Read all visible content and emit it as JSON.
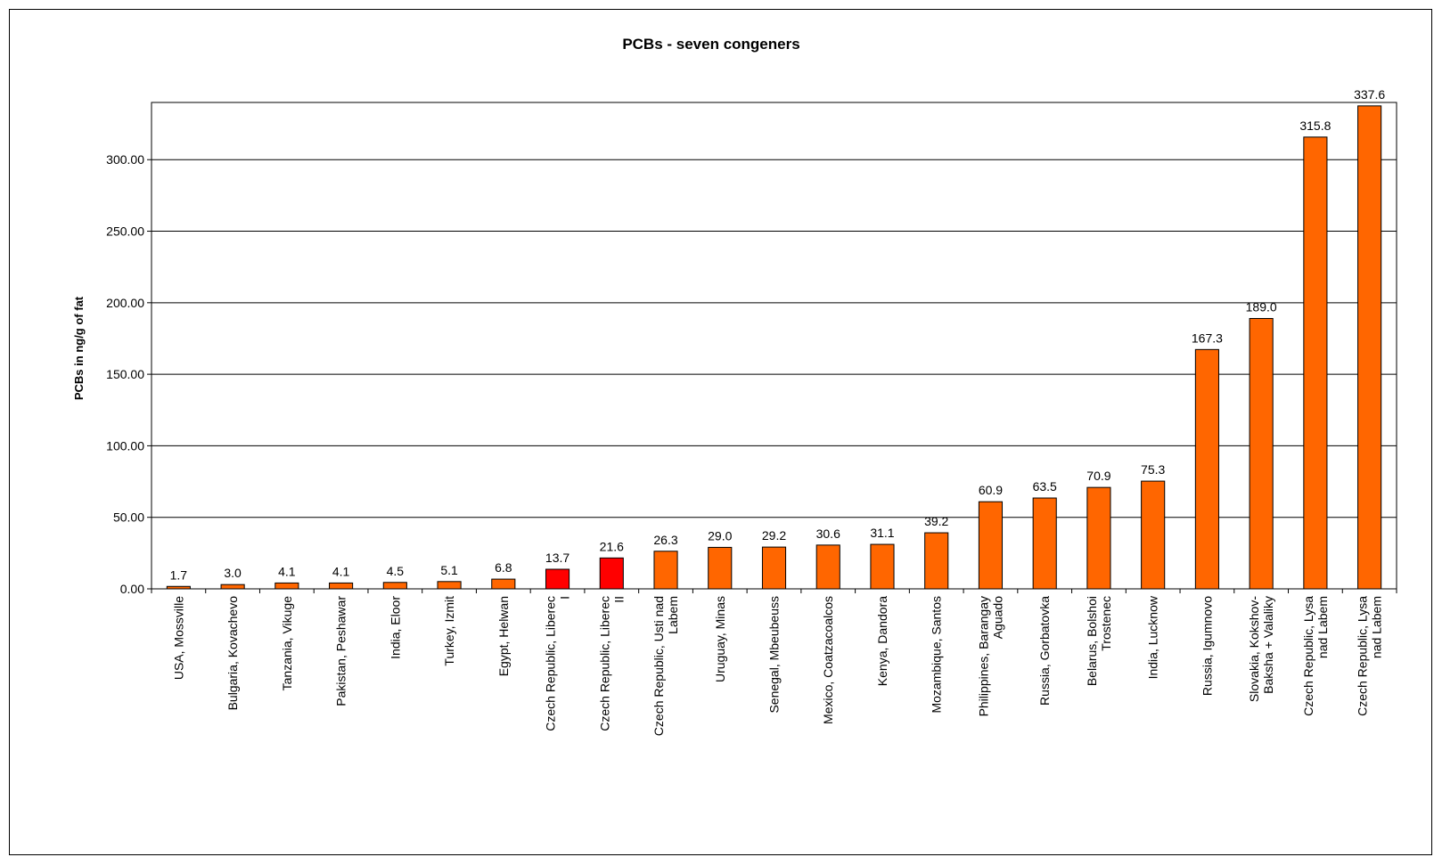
{
  "chart_data": {
    "type": "bar",
    "title": "PCBs - seven congeners",
    "xlabel": "",
    "ylabel": "PCBs in ng/g of fat",
    "ylim": [
      0,
      340
    ],
    "yticks": [
      "0.00",
      "50.00",
      "100.00",
      "150.00",
      "200.00",
      "250.00",
      "300.00"
    ],
    "grid": true,
    "legend": "none",
    "categories": [
      [
        "USA, Mossville"
      ],
      [
        "Bulgaria, Kovachevo"
      ],
      [
        "Tanzania, Vikuge"
      ],
      [
        "Pakistan, Peshawar"
      ],
      [
        "India, Eloor"
      ],
      [
        "Turkey, Izmit"
      ],
      [
        "Egypt, Helwan"
      ],
      [
        "Czech Republic, Liberec",
        "I"
      ],
      [
        "Czech Republic, Liberec",
        "II"
      ],
      [
        "Czech Republic, Usti nad",
        "Labem"
      ],
      [
        "Uruguay, Minas"
      ],
      [
        "Senegal, Mbeubeuss"
      ],
      [
        "Mexico, Coatzacoalcos"
      ],
      [
        "Kenya, Dandora"
      ],
      [
        "Mozambique, Santos"
      ],
      [
        "Philippines, Barangay",
        "Aguado"
      ],
      [
        "Russia, Gorbatovka"
      ],
      [
        "Belarus, Bolshoi",
        "Trostenec"
      ],
      [
        "India, Lucknow"
      ],
      [
        "Russia, Igumnovo"
      ],
      [
        "Slovakia, Kokshov-",
        "Baksha + Valaliky"
      ],
      [
        "Czech Republic, Lysa",
        "nad Labem"
      ],
      [
        "Czech Republic, Lysa",
        "nad Labem"
      ]
    ],
    "values": [
      1.7,
      3.0,
      4.1,
      4.1,
      4.5,
      5.1,
      6.8,
      13.7,
      21.6,
      26.3,
      29.0,
      29.2,
      30.6,
      31.1,
      39.2,
      60.9,
      63.5,
      70.9,
      75.3,
      167.3,
      189.0,
      315.8,
      337.6
    ],
    "value_labels": [
      "1.7",
      "3.0",
      "4.1",
      "4.1",
      "4.5",
      "5.1",
      "6.8",
      "13.7",
      "21.6",
      "26.3",
      "29.0",
      "29.2",
      "30.6",
      "31.1",
      "39.2",
      "60.9",
      "63.5",
      "70.9",
      "75.3",
      "167.3",
      "189.0",
      "315.8",
      "337.6"
    ],
    "colors": {
      "default": "#ff6600",
      "highlight": "#ff0000",
      "highlight_indices": [
        7,
        8
      ],
      "bar_outline": "#000000",
      "grid": "#000000"
    }
  }
}
